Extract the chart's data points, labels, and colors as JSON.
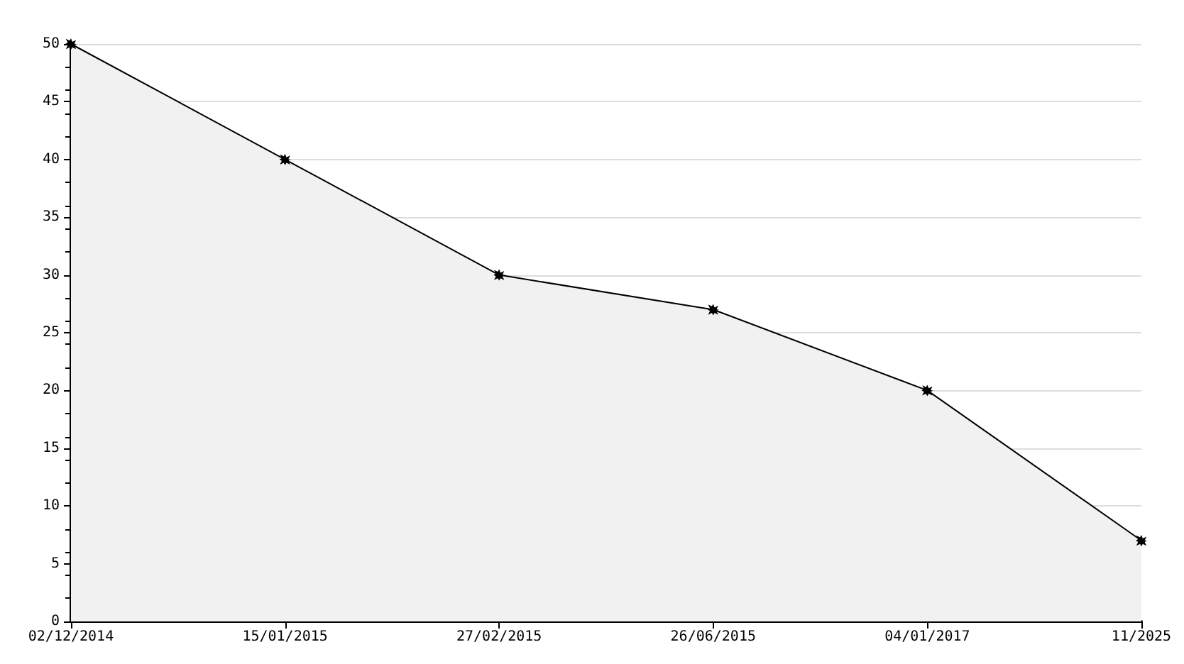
{
  "chart_data": {
    "type": "area",
    "categories": [
      "02/12/2014",
      "15/01/2015",
      "27/02/2015",
      "26/06/2015",
      "04/01/2017",
      "11/2025"
    ],
    "series": [
      {
        "color": "#000000",
        "values": [
          50,
          40,
          30,
          27,
          20,
          7
        ]
      }
    ],
    "ylim": [
      0,
      50
    ],
    "yticks": [
      0,
      5,
      10,
      15,
      20,
      25,
      30,
      35,
      40,
      45,
      50
    ],
    "grid": "y",
    "marker": "star",
    "line_style": "solid"
  }
}
